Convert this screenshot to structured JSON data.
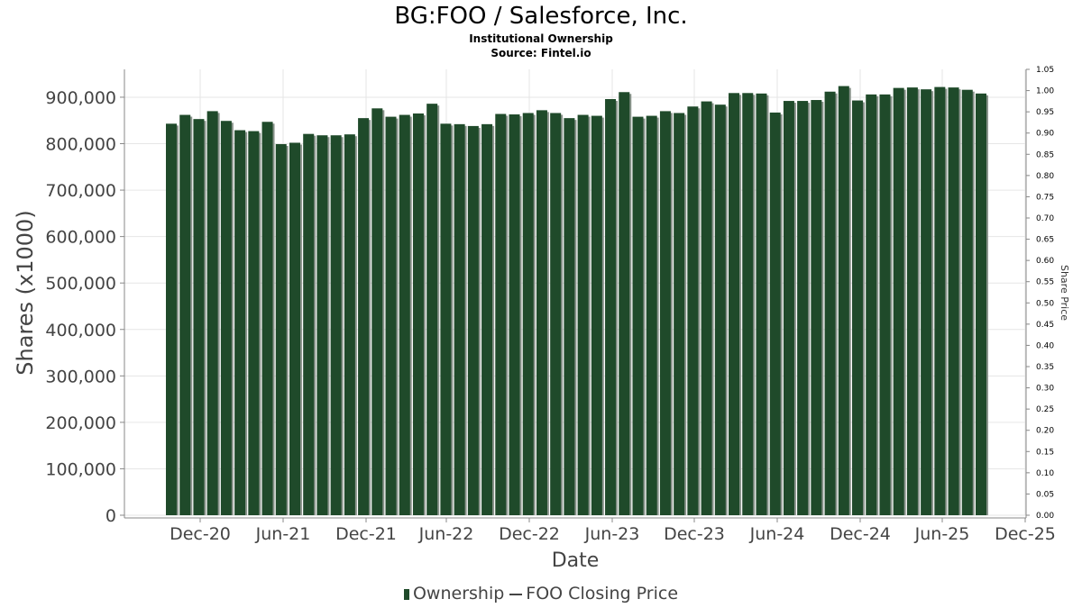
{
  "chart_data": {
    "type": "bar",
    "title": "BG:FOO / Salesforce, Inc.",
    "subtitle": "Institutional Ownership",
    "source": "Source: Fintel.io",
    "xlabel": "Date",
    "ylabel": "Shares (x1000)",
    "y2label": "Share Price",
    "ylim": [
      0,
      960000
    ],
    "y2lim": [
      0,
      1.05
    ],
    "y_ticks": [
      "0",
      "100,000",
      "200,000",
      "300,000",
      "400,000",
      "500,000",
      "600,000",
      "700,000",
      "800,000",
      "900,000"
    ],
    "y2_ticks": [
      "0.00",
      "0.05",
      "0.10",
      "0.15",
      "0.20",
      "0.25",
      "0.30",
      "0.35",
      "0.40",
      "0.45",
      "0.50",
      "0.55",
      "0.60",
      "0.65",
      "0.70",
      "0.75",
      "0.80",
      "0.85",
      "0.90",
      "0.95",
      "1.00",
      "1.05"
    ],
    "x_ticks": [
      "Dec-20",
      "Jun-21",
      "Dec-21",
      "Jun-22",
      "Dec-22",
      "Jun-23",
      "Dec-23",
      "Jun-24",
      "Dec-24",
      "Jun-25",
      "Dec-25"
    ],
    "grid": true,
    "legend_position": "bottom",
    "colors": {
      "bar": "#1f4a2a",
      "bar_shadow": "#8a948c",
      "grid": "#e6e6e6",
      "axis": "#888888"
    },
    "series": [
      {
        "name": "Ownership",
        "values": [
          843000,
          862000,
          853000,
          870000,
          849000,
          829000,
          827000,
          847000,
          799000,
          802000,
          821000,
          818000,
          818000,
          820000,
          855000,
          876000,
          858000,
          862000,
          865000,
          886000,
          843000,
          842000,
          838000,
          842000,
          864000,
          863000,
          866000,
          872000,
          866000,
          855000,
          862000,
          860000,
          896000,
          911000,
          858000,
          860000,
          870000,
          866000,
          880000,
          891000,
          884000,
          909000,
          909000,
          908000,
          867000,
          892000,
          892000,
          894000,
          912000,
          924000,
          893000,
          906000,
          906000,
          920000,
          921000,
          917000,
          922000,
          921000,
          916000,
          908000
        ]
      },
      {
        "name": "FOO Closing Price",
        "values": []
      }
    ]
  },
  "legend": {
    "item1": "Ownership",
    "item2": "FOO Closing Price"
  }
}
